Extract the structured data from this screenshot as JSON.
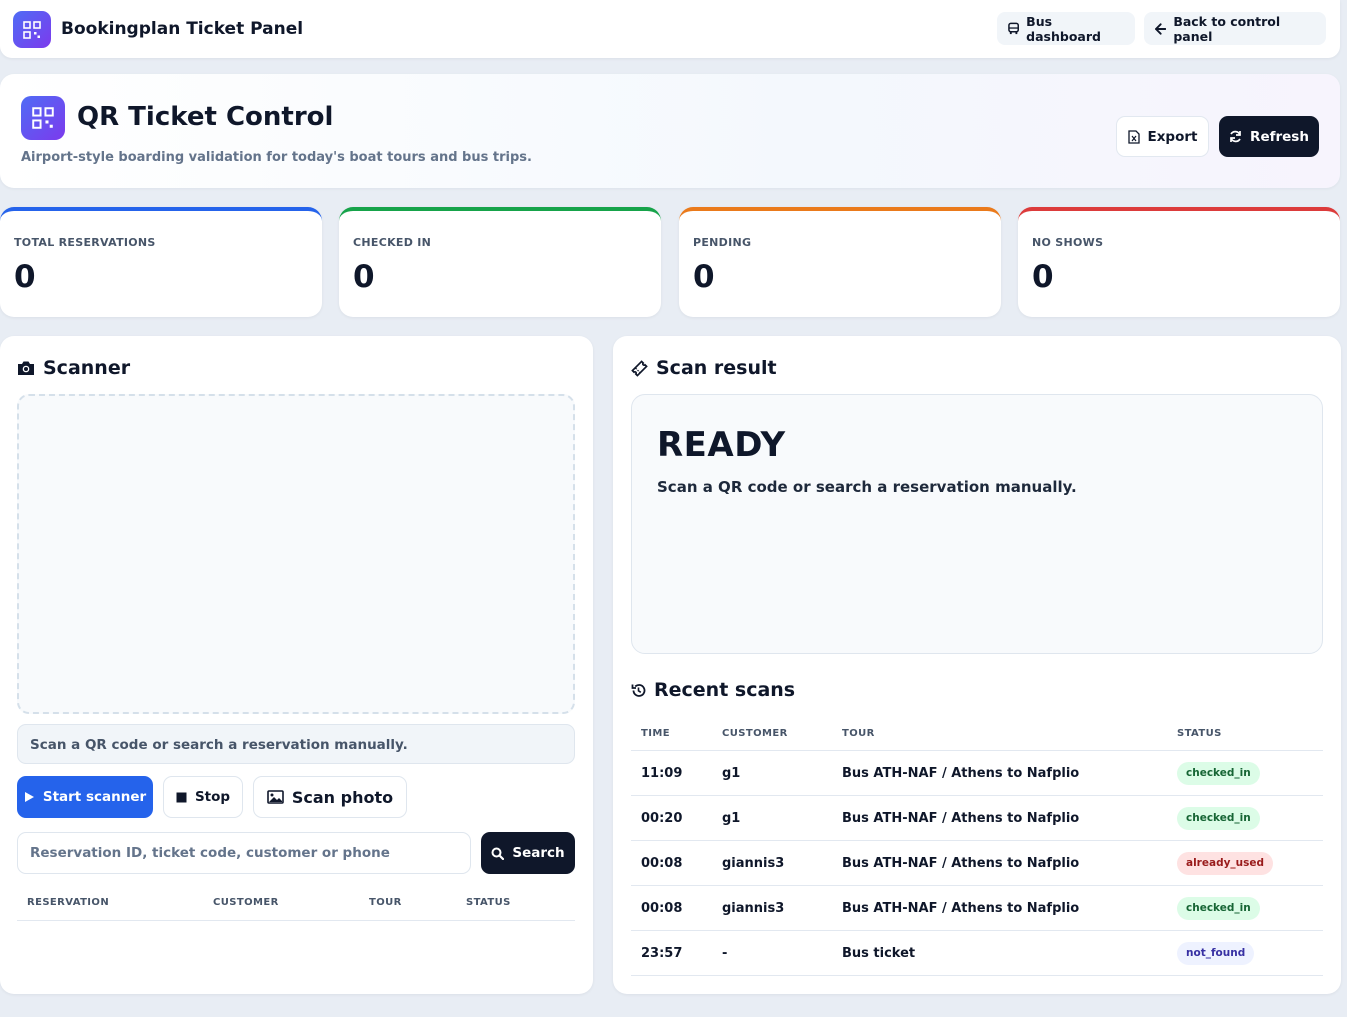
{
  "header": {
    "brand_title": "Bookingplan Ticket Panel",
    "bus_dashboard_label": "Bus dashboard",
    "back_label": "Back to control panel",
    "brand_icon": "qr-code-icon"
  },
  "hero": {
    "title": "QR Ticket Control",
    "subtitle": "Airport-style boarding validation for today's boat tours and bus trips.",
    "export_label": "Export",
    "refresh_label": "Refresh"
  },
  "stats": [
    {
      "label": "TOTAL RESERVATIONS",
      "value": "0",
      "color": "#2563eb"
    },
    {
      "label": "CHECKED IN",
      "value": "0",
      "color": "#16a34a"
    },
    {
      "label": "PENDING",
      "value": "0",
      "color": "#ea7a1b"
    },
    {
      "label": "NO SHOWS",
      "value": "0",
      "color": "#dc3b3b"
    }
  ],
  "scanner": {
    "title": "Scanner",
    "message": "Scan a QR code or search a reservation manually.",
    "start_label": "Start scanner",
    "stop_label": "Stop",
    "photo_label": "Scan photo",
    "search_placeholder": "Reservation ID, ticket code, customer or phone",
    "search_label": "Search",
    "columns": [
      "RESERVATION",
      "CUSTOMER",
      "TOUR",
      "STATUS"
    ]
  },
  "result": {
    "title": "Scan result",
    "status": "READY",
    "message": "Scan a QR code or search a reservation manually."
  },
  "recent": {
    "title": "Recent scans",
    "columns": [
      "TIME",
      "CUSTOMER",
      "TOUR",
      "STATUS"
    ],
    "rows": [
      {
        "time": "11:09",
        "customer": "g1",
        "tour": "Bus ATH-NAF / Athens to Nafplio",
        "status": "checked_in"
      },
      {
        "time": "00:20",
        "customer": "g1",
        "tour": "Bus ATH-NAF / Athens to Nafplio",
        "status": "checked_in"
      },
      {
        "time": "00:08",
        "customer": "giannis3",
        "tour": "Bus ATH-NAF / Athens to Nafplio",
        "status": "already_used"
      },
      {
        "time": "00:08",
        "customer": "giannis3",
        "tour": "Bus ATH-NAF / Athens to Nafplio",
        "status": "checked_in"
      },
      {
        "time": "23:57",
        "customer": "-",
        "tour": "Bus ticket",
        "status": "not_found"
      }
    ]
  }
}
